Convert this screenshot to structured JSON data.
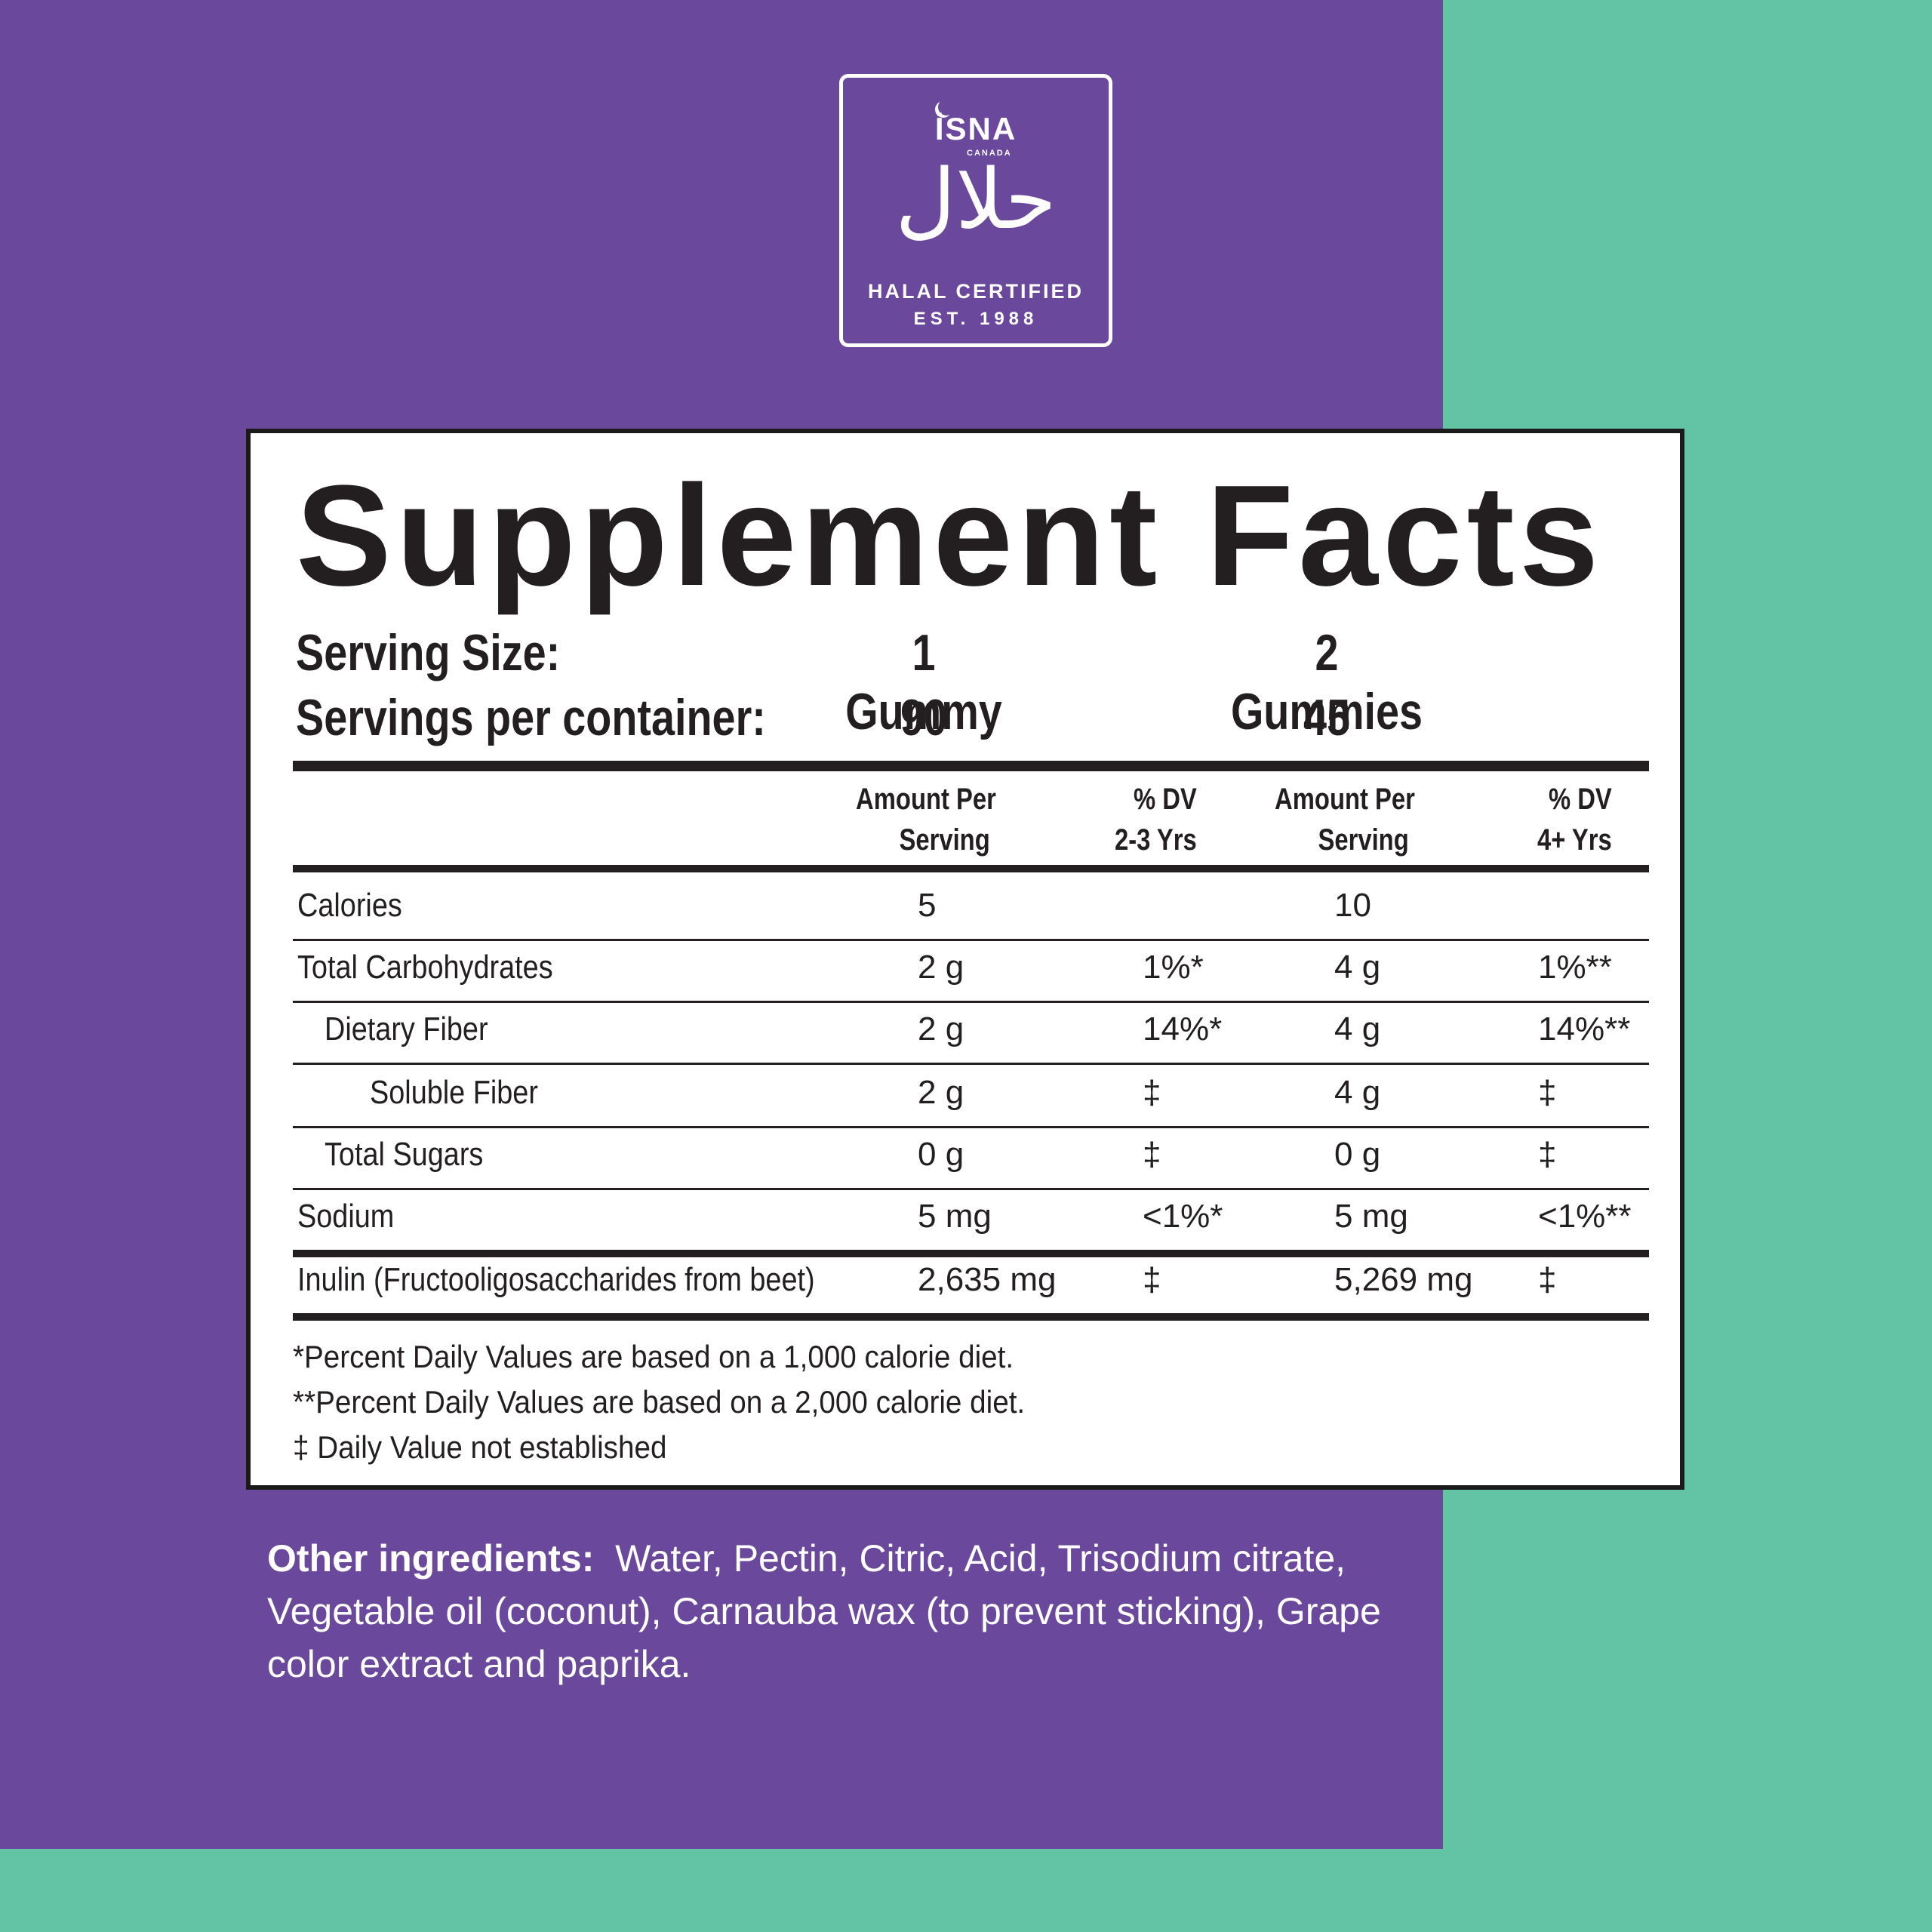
{
  "colors": {
    "purple": "#6a489c",
    "teal": "#62c4a4",
    "panel_border": "#1a1a1a",
    "text_dark": "#231f20"
  },
  "badge": {
    "isna": "İSNA",
    "canada": "CANADA",
    "arabic": "حلال",
    "certified": "HALAL CERTIFIED",
    "established": "EST. 1988"
  },
  "facts": {
    "title": "Supplement Facts",
    "serving_size_label": "Serving Size:",
    "serving_size_1": "1 Gummy",
    "serving_size_2": "2 Gummies",
    "servings_per_container_label": "Servings per container:",
    "servings_1": "90",
    "servings_2": "45",
    "headers": {
      "amount_1_line1": "Amount Per",
      "amount_1_line2": "Serving",
      "dv_1_line1": "% DV",
      "dv_1_line2": "2-3 Yrs",
      "amount_2_line1": "Amount Per",
      "amount_2_line2": "Serving",
      "dv_2_line1": "% DV",
      "dv_2_line2": "4+ Yrs"
    },
    "rows": [
      {
        "label": "Calories",
        "amt1": "5",
        "dv1": "",
        "amt2": "10",
        "dv2": ""
      },
      {
        "label": "Total Carbohydrates",
        "amt1": "2 g",
        "dv1": "1%*",
        "amt2": "4 g",
        "dv2": "1%**"
      },
      {
        "label": "Dietary Fiber",
        "amt1": "2 g",
        "dv1": "14%*",
        "amt2": "4 g",
        "dv2": "14%**"
      },
      {
        "label": "Soluble Fiber",
        "amt1": "2 g",
        "dv1": "‡",
        "amt2": "4 g",
        "dv2": "‡"
      },
      {
        "label": "Total Sugars",
        "amt1": "0 g",
        "dv1": "‡",
        "amt2": "0 g",
        "dv2": "‡"
      },
      {
        "label": "Sodium",
        "amt1": "5 mg",
        "dv1": "<1%*",
        "amt2": "5 mg",
        "dv2": "<1%**"
      },
      {
        "label": "Inulin (Fructooligosaccharides from beet)",
        "amt1": "2,635 mg",
        "dv1": "‡",
        "amt2": "5,269 mg",
        "dv2": "‡"
      }
    ],
    "footnote_1": "*Percent Daily Values are based on a 1,000 calorie diet.",
    "footnote_2": "**Percent Daily Values are based on a 2,000 calorie diet.",
    "footnote_3": "‡ Daily Value not established"
  },
  "ingredients": {
    "title": "Other ingredients:",
    "text": "Water, Pectin, Citric, Acid, Trisodium citrate, Vegetable oil (coconut), Carnauba wax (to prevent sticking), Grape color extract and paprika."
  }
}
